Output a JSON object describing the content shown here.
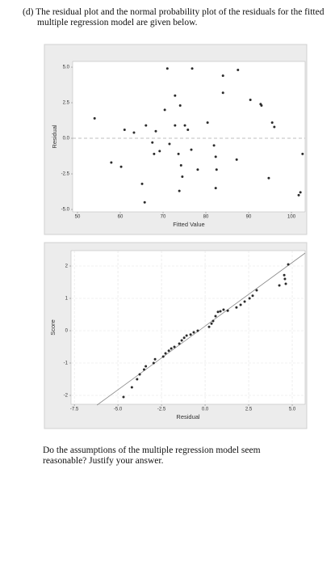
{
  "intro": "(d) The residual plot and the normal probability plot of the residuals for the fitted multiple regression model are given below.",
  "question": "Do the assumptions of the multiple regression model seem reasonable? Justify your answer.",
  "chart_data": [
    {
      "type": "scatter",
      "xlabel": "Fitted Value",
      "ylabel": "Residual",
      "color": "#2b2b2b",
      "grid": false,
      "reference_line": 0,
      "xlim": [
        48.87,
        103.2
      ],
      "ylim": [
        -5.17,
        5.4
      ],
      "xticks": [
        50,
        60,
        70,
        80,
        90,
        100
      ],
      "yticks": [
        {
          "value": 5,
          "label": "5.0"
        },
        2.5,
        {
          "value": 0,
          "label": "0.0"
        },
        -2.5,
        {
          "value": -5,
          "label": "-5.0"
        }
      ],
      "x": [
        54,
        57.9,
        60.2,
        61,
        63.2,
        65.1,
        65.7,
        66,
        67.5,
        67.9,
        68.3,
        69.2,
        70.4,
        71,
        71.5,
        72.8,
        72.8,
        73.6,
        74,
        74.2,
        74.5,
        75.1,
        75.8,
        76.6,
        73.8,
        76.8,
        78.1,
        80.4,
        81.9,
        82.3,
        82.5,
        82.3,
        84,
        84,
        87.2,
        87.5,
        90.4,
        92.8,
        93,
        94.7,
        95.5,
        96,
        101.7,
        102.1,
        102.6
      ],
      "y": [
        1.4,
        -1.7,
        -2.0,
        0.6,
        0.4,
        -3.2,
        -4.5,
        0.9,
        -0.3,
        -1.1,
        0.5,
        -0.9,
        2.0,
        4.9,
        -0.4,
        3.0,
        0.9,
        -1.1,
        2.3,
        -1.9,
        -2.7,
        0.9,
        0.6,
        -0.8,
        -3.7,
        4.9,
        -2.2,
        1.1,
        -0.5,
        -1.3,
        -2.2,
        -3.5,
        4.4,
        3.2,
        -1.5,
        4.8,
        2.7,
        2.4,
        2.3,
        -2.8,
        1.1,
        0.8,
        -4.0,
        -3.8,
        -1.1
      ]
    },
    {
      "type": "scatter",
      "xlabel": "Residual",
      "ylabel": "Score",
      "color": "#2b2b2b",
      "grid": true,
      "fit_line": {
        "x": [
          -6.2,
          5.74
        ],
        "y": [
          -2.3,
          2.4
        ]
      },
      "xlim": [
        -7.69,
        5.74
      ],
      "ylim": [
        -2.275,
        2.475
      ],
      "xticks": [
        -7.5,
        {
          "value": -5,
          "label": "-5.0"
        },
        -2.5,
        {
          "value": 0,
          "label": "0.0"
        },
        2.5,
        {
          "value": 5,
          "label": "5.0"
        }
      ],
      "yticks": [
        2,
        1,
        0,
        -1,
        -2
      ],
      "x": [
        -4.68,
        -4.2,
        -3.9,
        -3.75,
        -3.5,
        -3.4,
        -2.95,
        -2.87,
        -2.4,
        -2.27,
        -2.08,
        -1.94,
        -1.76,
        -1.48,
        -1.34,
        -1.2,
        -1.06,
        -0.83,
        -0.65,
        -0.42,
        0.23,
        0.37,
        0.46,
        0.6,
        0.74,
        0.88,
        1.06,
        1.3,
        1.8,
        2.04,
        2.27,
        2.55,
        2.73,
        2.96,
        4.26,
        4.58,
        4.63,
        4.54,
        4.77
      ],
      "y": [
        -2.05,
        -1.75,
        -1.5,
        -1.35,
        -1.2,
        -1.1,
        -1.0,
        -0.88,
        -0.8,
        -0.7,
        -0.62,
        -0.55,
        -0.5,
        -0.4,
        -0.3,
        -0.22,
        -0.15,
        -0.12,
        -0.05,
        0,
        0.12,
        0.22,
        0.3,
        0.45,
        0.58,
        0.6,
        0.65,
        0.62,
        0.72,
        0.8,
        0.9,
        1.0,
        1.08,
        1.25,
        1.4,
        1.6,
        1.45,
        1.72,
        2.05
      ]
    }
  ]
}
